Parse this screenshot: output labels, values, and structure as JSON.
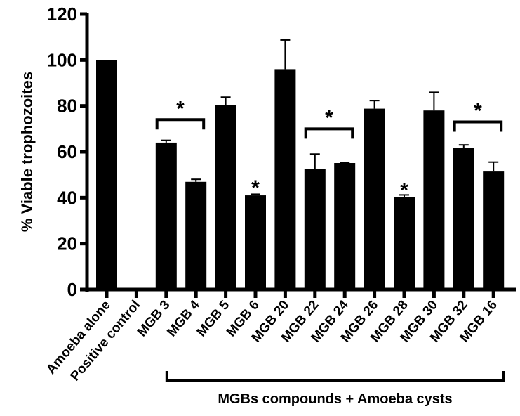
{
  "chart_data": {
    "type": "bar",
    "title": "",
    "ylabel": "% Viable trophozoites",
    "xlabel": "",
    "ylim": [
      0,
      120
    ],
    "yticks": [
      0,
      20,
      40,
      60,
      80,
      100,
      120
    ],
    "grid": false,
    "bar_color": "#000000",
    "categories": [
      "Amoeba alone",
      "Positive control",
      "MGB 3",
      "MGB 4",
      "MGB 5",
      "MGB 6",
      "MGB 20",
      "MGB 22",
      "MGB 24",
      "MGB 26",
      "MGB 28",
      "MGB 30",
      "MGB 32",
      "MGB 16"
    ],
    "values": [
      100,
      0,
      64.0,
      46.9,
      80.5,
      41.0,
      96.0,
      52.6,
      55.1,
      78.8,
      40.2,
      78.0,
      61.8,
      51.4
    ],
    "errors": [
      0,
      0,
      1.0,
      1.1,
      3.3,
      0.5,
      12.7,
      6.4,
      0.3,
      3.5,
      1.0,
      7.9,
      1.2,
      4.1
    ],
    "significance": [
      {
        "type": "bracket",
        "from": "MGB 3",
        "to": "MGB 4",
        "y": 74,
        "label": "*"
      },
      {
        "type": "single",
        "at": "MGB 6",
        "y": 45,
        "label": "*"
      },
      {
        "type": "bracket",
        "from": "MGB 22",
        "to": "MGB 24",
        "y": 70,
        "label": "*"
      },
      {
        "type": "single",
        "at": "MGB 28",
        "y": 44,
        "label": "*"
      },
      {
        "type": "bracket",
        "from": "MGB 32",
        "to": "MGB 16",
        "y": 73,
        "label": "*"
      }
    ],
    "group_label": {
      "from": "MGB 3",
      "to": "MGB 16",
      "text": "MGBs compounds + Amoeba cysts"
    }
  }
}
